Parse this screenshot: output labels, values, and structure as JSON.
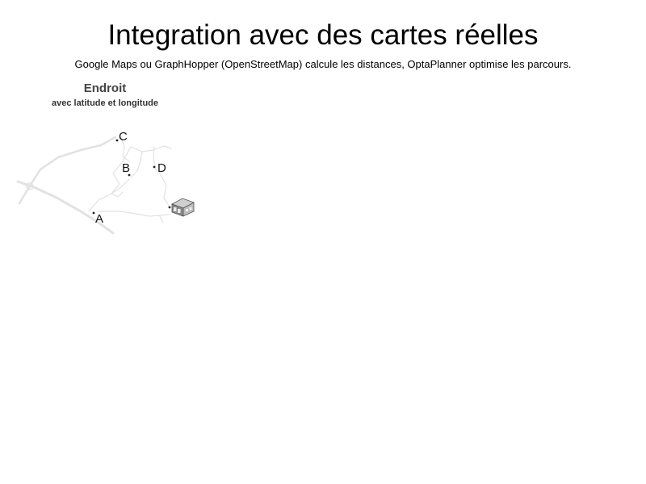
{
  "slide": {
    "title": "Integration avec des cartes réelles",
    "subtitle": "Google Maps ou GraphHopper (OpenStreetMap) calcule les distances, OptaPlanner optimise les parcours."
  },
  "panel": {
    "heading": "Endroit",
    "caption": "avec latitude et longitude"
  },
  "map": {
    "road_color": "#e2e2e2",
    "dot_color": "#222222",
    "depot_icon": "warehouse-icon",
    "locations": [
      {
        "key": "A",
        "label": "A"
      },
      {
        "key": "B",
        "label": "B"
      },
      {
        "key": "C",
        "label": "C"
      },
      {
        "key": "D",
        "label": "D"
      }
    ]
  }
}
